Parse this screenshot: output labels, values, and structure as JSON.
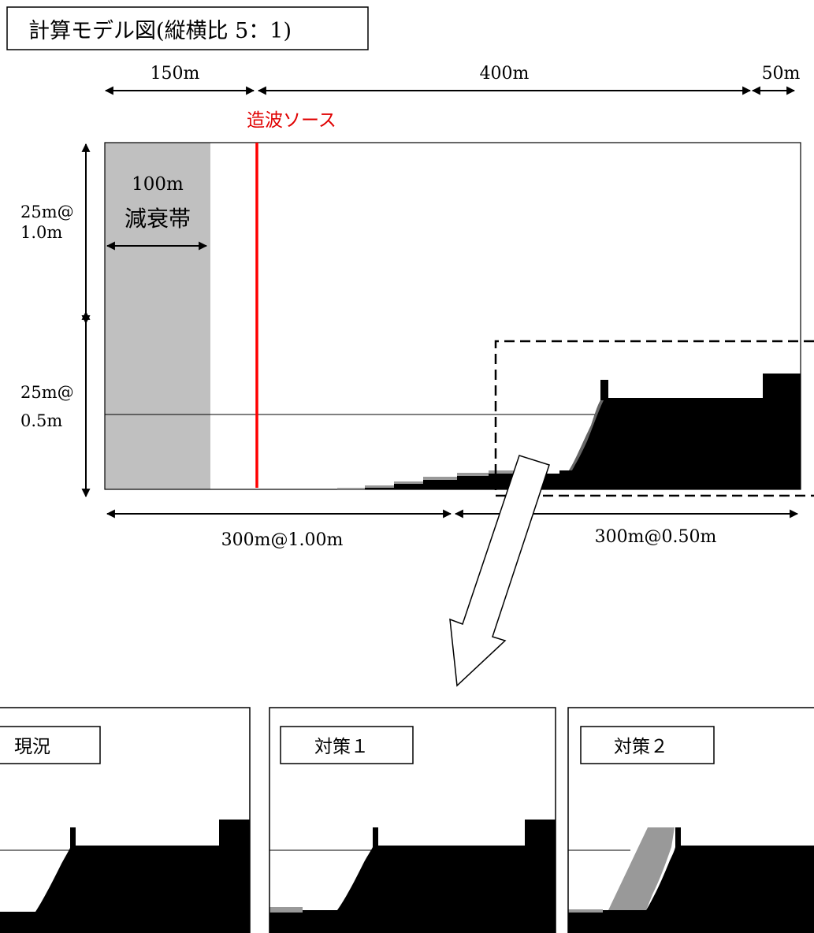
{
  "title": "計算モデル図(縦横比 5：1)",
  "dimensions_top": {
    "left": "150m",
    "middle": "400m",
    "right": "50m"
  },
  "source_label": "造波ソース",
  "damping_zone": {
    "width_label": "100m",
    "name": "減衰帯"
  },
  "vertical_dimensions": {
    "upper_l1": "25m@",
    "upper_l2": "1.0m",
    "lower_l1": "25m@",
    "lower_l2": "0.5m"
  },
  "horizontal_dimensions": {
    "left": "300m@1.00m",
    "right": "300m@0.50m"
  },
  "panels": [
    {
      "label": "現況"
    },
    {
      "label": "対策１"
    },
    {
      "label": "対策２"
    }
  ],
  "colors": {
    "source_line": "#ff0000",
    "source_text": "#e00000",
    "damping_zone": "#c0c0c0",
    "terrain": "#000000",
    "countermeasure_fill": "#999999"
  }
}
